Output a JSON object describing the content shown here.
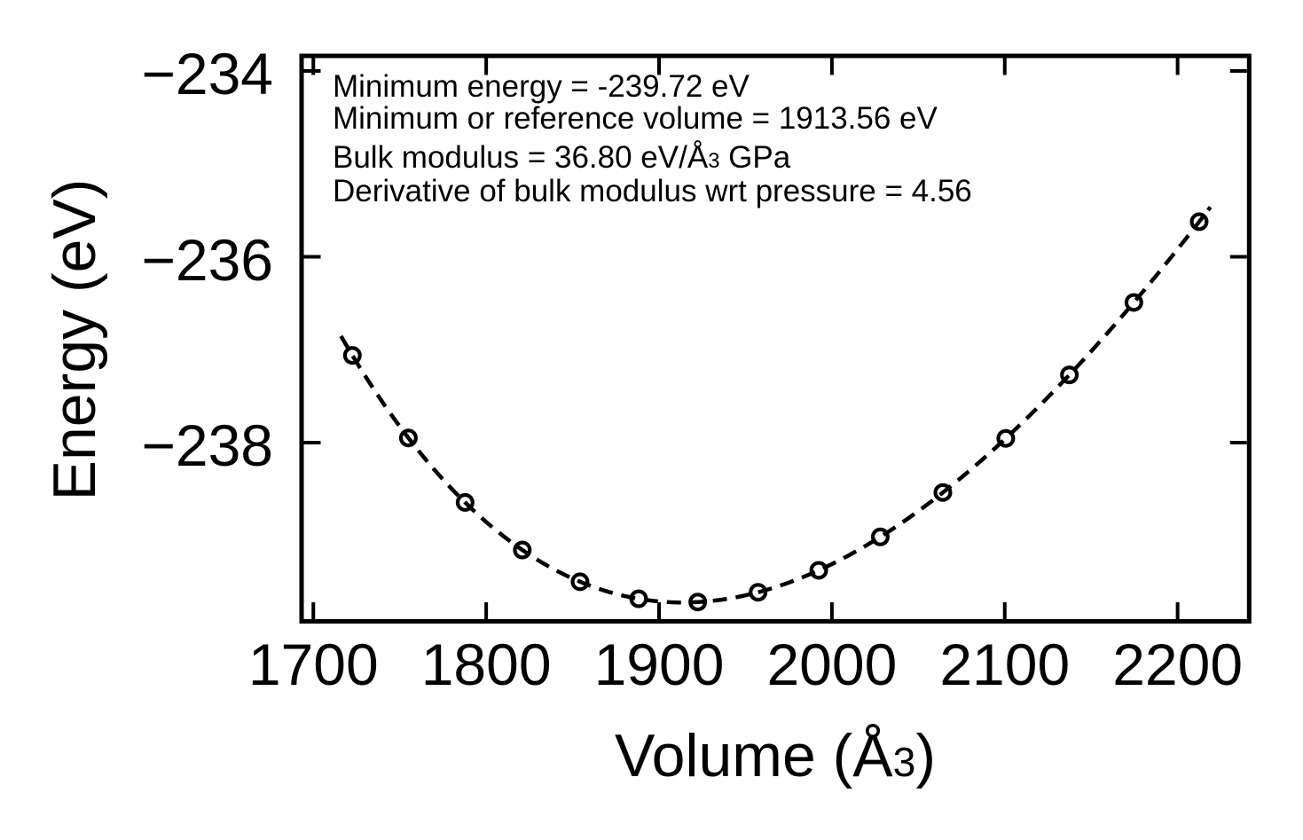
{
  "figure": {
    "background": "#ffffff",
    "ink_color": "#000000"
  },
  "chart_data": {
    "type": "scatter",
    "title": "",
    "xlabel": "Volume (Å³)",
    "ylabel": "Energy (eV)",
    "xlabel_parts": {
      "prefix": "Volume (Å",
      "sup": "3",
      "suffix": ")"
    },
    "grid": false,
    "legend": null,
    "marker_style": "open-circle",
    "fit_line_style": "dashed",
    "color": "#000000",
    "xlim": [
      1693.2,
      2241.4
    ],
    "ylim": [
      -239.923,
      -233.838
    ],
    "xticks": {
      "values": [
        1700,
        1800,
        1900,
        2000,
        2100,
        2200
      ],
      "labels": [
        "1700",
        "1800",
        "1900",
        "2000",
        "2100",
        "2200"
      ]
    },
    "yticks": {
      "values": [
        -234,
        -236,
        -238
      ],
      "labels": [
        "−234",
        "−236",
        "−238"
      ]
    },
    "points": {
      "volumes_A3": [
        1722.6,
        1755.0,
        1787.8,
        1820.9,
        1854.3,
        1888.2,
        1922.4,
        1957.3,
        1992.4,
        2028.0,
        2064.2,
        2100.6,
        2137.4,
        2174.7,
        2212.5
      ],
      "energies_eV": [
        -237.061,
        -237.949,
        -238.643,
        -239.155,
        -239.497,
        -239.68,
        -239.715,
        -239.61,
        -239.374,
        -239.014,
        -238.536,
        -237.954,
        -237.271,
        -236.491,
        -235.622
      ]
    },
    "fit": {
      "model": "birch-murnaghan-3rd-order",
      "min_energy_eV": -239.72,
      "reference_volume": 1913.56,
      "bulk_modulus_GPa": 36.8,
      "bulk_modulus_pressure_derivative": 4.56,
      "curve_volume_range": [
        1716,
        2219
      ]
    },
    "annotation": {
      "line1": "Minimum energy = -239.72 eV",
      "line2": "Minimum or reference volume = 1913.56 eV",
      "line3_prefix": "Bulk modulus = 36.80 eV/Å",
      "line3_sup": "3",
      "line3_suffix": " GPa",
      "line4": "Derivative of bulk modulus wrt pressure = 4.56"
    }
  }
}
